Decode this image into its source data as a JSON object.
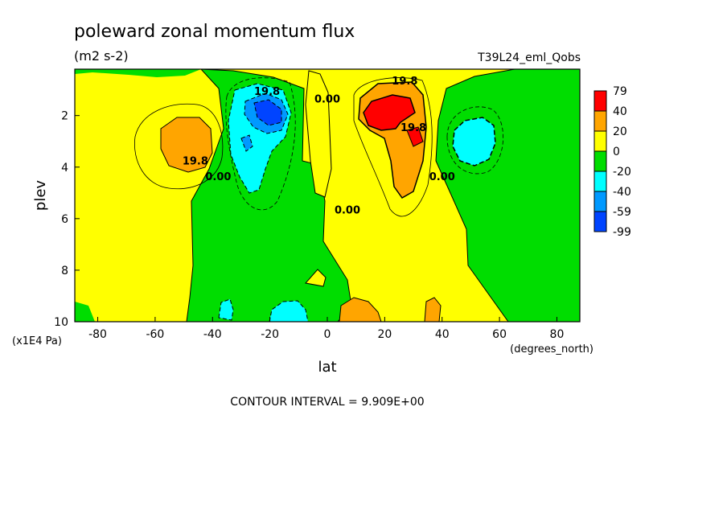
{
  "chart_data": {
    "type": "heatmap",
    "title": "poleward zonal momentum flux",
    "units": "(m2 s-2)",
    "run_label": "T39L24_eml_Qobs",
    "xlabel": "lat",
    "xunits": "(degrees_north)",
    "ylabel": "plev",
    "yunits": "(x1E4 Pa)",
    "x_ticks": [
      "-80",
      "-60",
      "-40",
      "-20",
      "0",
      "20",
      "40",
      "60",
      "80"
    ],
    "y_ticks": [
      "2",
      "4",
      "6",
      "8",
      "10"
    ],
    "xlim": [
      -88,
      88
    ],
    "ylim": [
      0.2,
      10
    ],
    "contour_interval_text": "CONTOUR INTERVAL = 9.909E+00",
    "contour_labels": [
      {
        "text": "19.8",
        "lat": -21,
        "plev": 1.2
      },
      {
        "text": "0.00",
        "lat": 0,
        "plev": 1.5
      },
      {
        "text": "19.8",
        "lat": 27,
        "plev": 0.8
      },
      {
        "text": "19.8",
        "lat": 30,
        "plev": 2.6
      },
      {
        "text": "19.8",
        "lat": -46,
        "plev": 3.9
      },
      {
        "text": "0.00",
        "lat": -38,
        "plev": 4.5
      },
      {
        "text": "0.00",
        "lat": 7,
        "plev": 5.8
      },
      {
        "text": "0.00",
        "lat": 40,
        "plev": 4.5
      }
    ],
    "levels": [
      {
        "label": "79",
        "color": "#ff0000"
      },
      {
        "label": "40",
        "color": "#ffa500"
      },
      {
        "label": "20",
        "color": "#ffff00"
      },
      {
        "label": "0",
        "color": "#00dd00"
      },
      {
        "label": "-20",
        "color": "#00ffff"
      },
      {
        "label": "-40",
        "color": "#0099ff"
      },
      {
        "label": "-59",
        "color": "#0044ff"
      },
      {
        "label": "-99",
        "color": "#0044ff"
      }
    ],
    "regions": [
      {
        "name": "sh-midlat-orange",
        "value": 25,
        "lat": -50,
        "plev": 3.0
      },
      {
        "name": "sh-subtrop-cyan",
        "value": -25,
        "lat": -25,
        "plev": 2.7
      },
      {
        "name": "sh-subtrop-blue-core",
        "value": -55,
        "lat": -19,
        "plev": 1.9
      },
      {
        "name": "nh-subtrop-red-core",
        "value": 45,
        "lat": 20,
        "plev": 1.9
      },
      {
        "name": "nh-subtrop-orange",
        "value": 25,
        "lat": 28,
        "plev": 3.2
      },
      {
        "name": "nh-midlat-cyan",
        "value": -25,
        "lat": 50,
        "plev": 3.0
      },
      {
        "name": "sfc-orange-nh",
        "value": 25,
        "lat": 13,
        "plev": 9.7
      },
      {
        "name": "sfc-cyan-sh",
        "value": -25,
        "lat": -15,
        "plev": 9.7
      }
    ]
  }
}
